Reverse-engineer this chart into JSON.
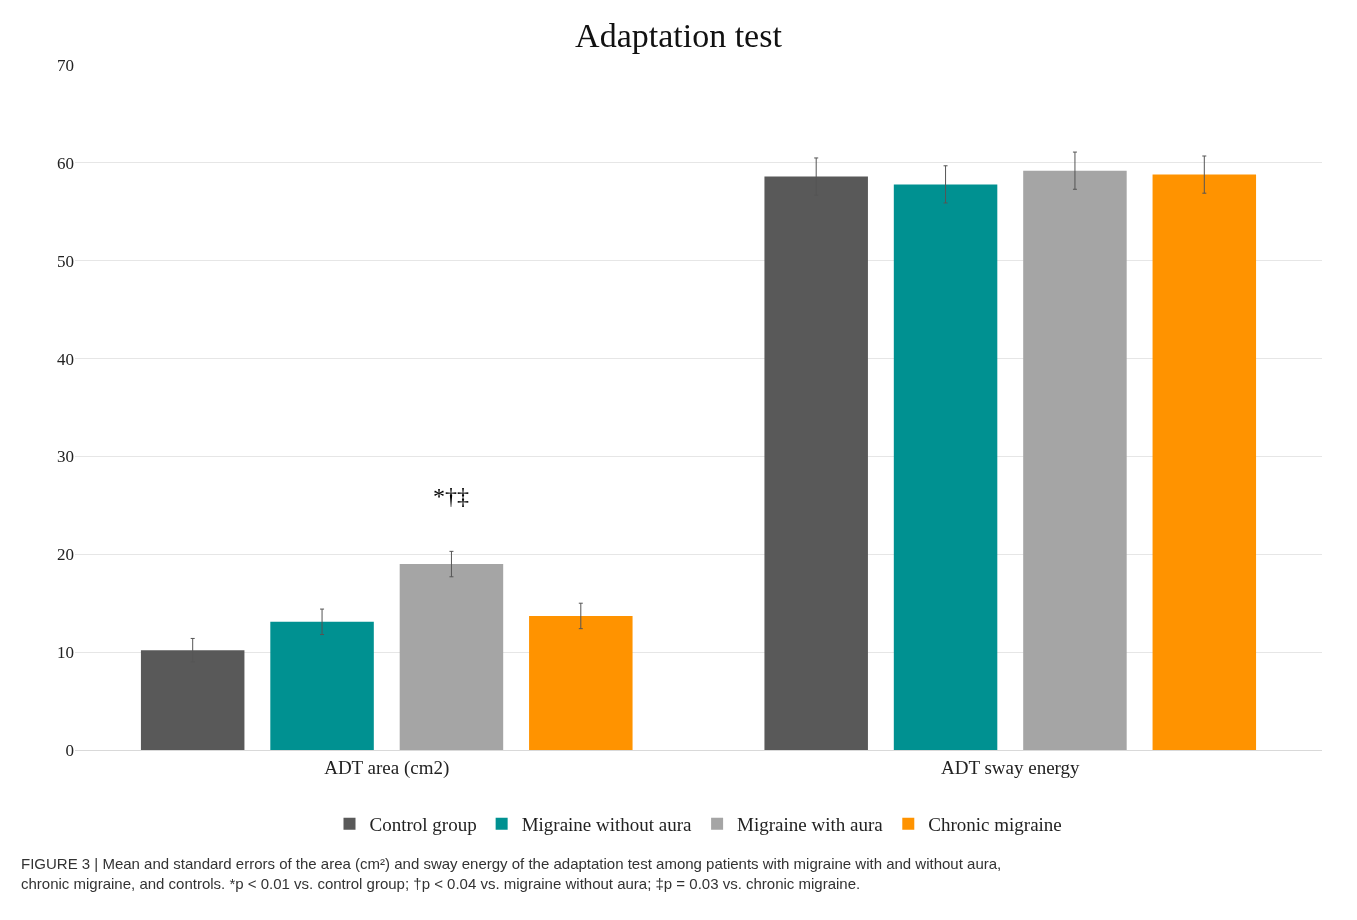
{
  "chart_data": {
    "type": "bar",
    "title": "Adaptation test",
    "categories": [
      "ADT area (cm2)",
      "ADT sway energy"
    ],
    "series": [
      {
        "name": "Control group",
        "color": "#595959",
        "values": [
          10.2,
          58.6
        ],
        "errors": [
          1.2,
          1.9
        ]
      },
      {
        "name": "Migraine without aura",
        "color": "#009191",
        "values": [
          13.1,
          57.8
        ],
        "errors": [
          1.3,
          1.9
        ]
      },
      {
        "name": "Migraine with aura",
        "color": "#a5a5a5",
        "values": [
          19.0,
          59.2
        ],
        "errors": [
          1.3,
          1.9
        ]
      },
      {
        "name": "Chronic migraine",
        "color": "#ff9300",
        "values": [
          13.7,
          58.8
        ],
        "errors": [
          1.3,
          1.9
        ]
      }
    ],
    "ylim": [
      0,
      70
    ],
    "yticks": [
      0,
      10,
      20,
      30,
      40,
      50,
      60,
      70
    ],
    "grid": "y",
    "legend": "bottom",
    "annotations": [
      "*†‡",
      "FIGURE 3 | Mean and standard errors of the area (cm²) and sway energy of the adaptation test among patients with migraine with and without aura, chronic migraine, and controls. *p < 0.01 vs. control group; †p < 0.04 vs. migraine without aura; ‡p = 0.03 vs. chronic migraine."
    ]
  }
}
